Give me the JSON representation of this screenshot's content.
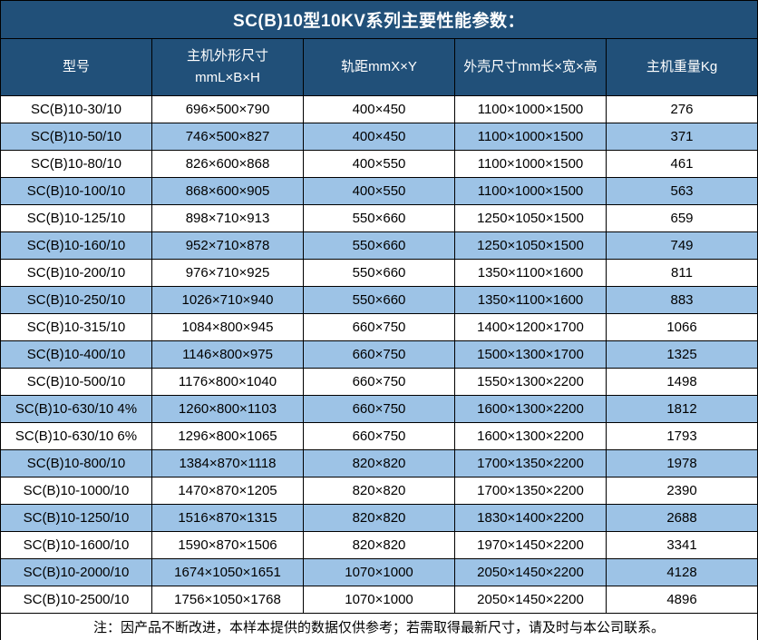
{
  "title": "SC(B)10型10KV系列主要性能参数：",
  "columns": [
    {
      "key": "model",
      "label": "型号"
    },
    {
      "key": "unit-dimensions",
      "label": "主机外形尺寸\nmmL×B×H"
    },
    {
      "key": "rail-gauge",
      "label": "轨距mmX×Y"
    },
    {
      "key": "shell-dimensions",
      "label": "外壳尺寸mm长×宽×高"
    },
    {
      "key": "weight",
      "label": "主机重量Kg"
    }
  ],
  "rows": [
    [
      "SC(B)10-30/10",
      "696×500×790",
      "400×450",
      "1100×1000×1500",
      "276"
    ],
    [
      "SC(B)10-50/10",
      "746×500×827",
      "400×450",
      "1100×1000×1500",
      "371"
    ],
    [
      "SC(B)10-80/10",
      "826×600×868",
      "400×550",
      "1100×1000×1500",
      "461"
    ],
    [
      "SC(B)10-100/10",
      "868×600×905",
      "400×550",
      "1100×1000×1500",
      "563"
    ],
    [
      "SC(B)10-125/10",
      "898×710×913",
      "550×660",
      "1250×1050×1500",
      "659"
    ],
    [
      "SC(B)10-160/10",
      "952×710×878",
      "550×660",
      "1250×1050×1500",
      "749"
    ],
    [
      "SC(B)10-200/10",
      "976×710×925",
      "550×660",
      "1350×1100×1600",
      "811"
    ],
    [
      "SC(B)10-250/10",
      "1026×710×940",
      "550×660",
      "1350×1100×1600",
      "883"
    ],
    [
      "SC(B)10-315/10",
      "1084×800×945",
      "660×750",
      "1400×1200×1700",
      "1066"
    ],
    [
      "SC(B)10-400/10",
      "1146×800×975",
      "660×750",
      "1500×1300×1700",
      "1325"
    ],
    [
      "SC(B)10-500/10",
      "1176×800×1040",
      "660×750",
      "1550×1300×2200",
      "1498"
    ],
    [
      "SC(B)10-630/10 4%",
      "1260×800×1103",
      "660×750",
      "1600×1300×2200",
      "1812"
    ],
    [
      "SC(B)10-630/10 6%",
      "1296×800×1065",
      "660×750",
      "1600×1300×2200",
      "1793"
    ],
    [
      "SC(B)10-800/10",
      "1384×870×1118",
      "820×820",
      "1700×1350×2200",
      "1978"
    ],
    [
      "SC(B)10-1000/10",
      "1470×870×1205",
      "820×820",
      "1700×1350×2200",
      "2390"
    ],
    [
      "SC(B)10-1250/10",
      "1516×870×1315",
      "820×820",
      "1830×1400×2200",
      "2688"
    ],
    [
      "SC(B)10-1600/10",
      "1590×870×1506",
      "820×820",
      "1970×1450×2200",
      "3341"
    ],
    [
      "SC(B)10-2000/10",
      "1674×1050×1651",
      "1070×1000",
      "2050×1450×2200",
      "4128"
    ],
    [
      "SC(B)10-2500/10",
      "1756×1050×1768",
      "1070×1000",
      "2050×1450×2200",
      "4896"
    ]
  ],
  "footnote": "注：因产品不断改进，本样本提供的数据仅供参考；若需取得最新尺寸，请及时与本公司联系。",
  "colors": {
    "header_bg": "#215079",
    "header_text": "#FFFFFF",
    "stripe_bg": "#9DC3E6",
    "row_bg": "#FFFFFF",
    "body_text": "#000000",
    "border": "#000000"
  }
}
